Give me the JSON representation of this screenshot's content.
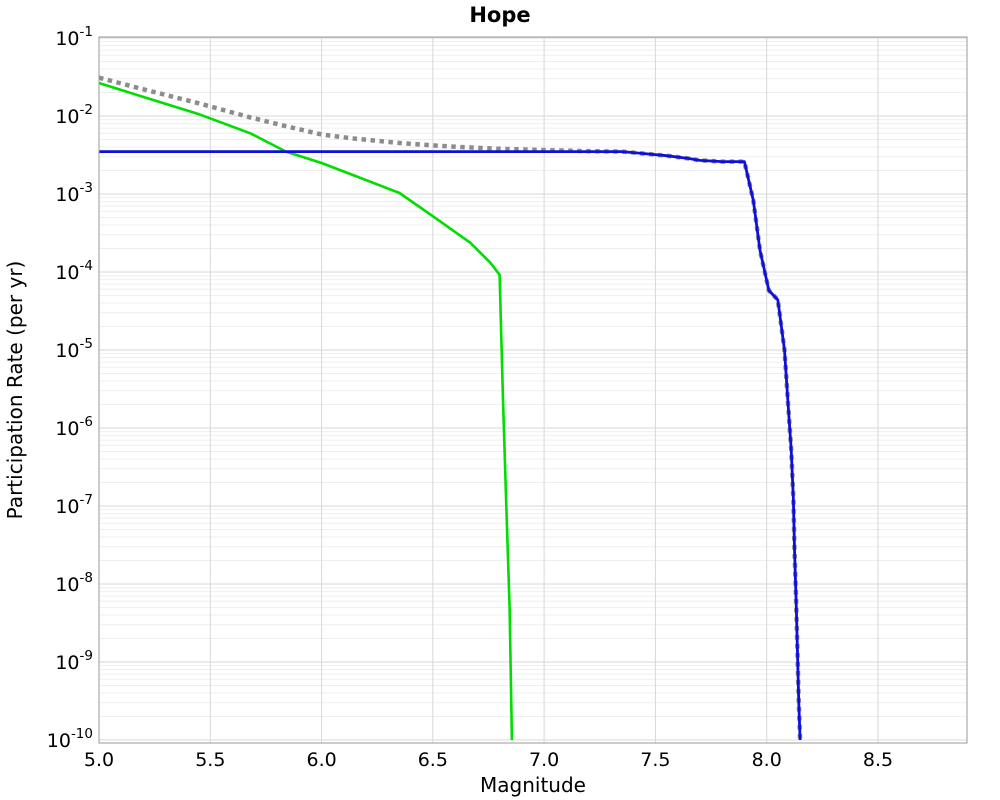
{
  "chart_data": {
    "type": "line",
    "title": "Hope",
    "xlabel": "Magnitude",
    "ylabel": "Participation Rate (per yr)",
    "xlim": [
      5.0,
      8.9
    ],
    "ylim": [
      1e-10,
      0.1
    ],
    "y_scale": "log",
    "grid": {
      "horizontal_major": true,
      "horizontal_minor_log": true,
      "vertical_major": true,
      "legend": "none"
    },
    "x_ticks": [
      5.0,
      5.5,
      6.0,
      6.5,
      7.0,
      7.5,
      8.0,
      8.5
    ],
    "x_tick_labels": [
      "5.0",
      "5.5",
      "6.0",
      "6.5",
      "7.0",
      "7.5",
      "8.0",
      "8.5"
    ],
    "y_tick_exponents": [
      -1,
      -2,
      -3,
      -4,
      -5,
      -6,
      -7,
      -8,
      -9,
      -10
    ],
    "y_tick_base": "10",
    "colors": {
      "gray_dotted": "#8c8c8c",
      "green_solid": "#00dd00",
      "blue_solid": "#0f0fdc",
      "grid_major": "#d7d7d7",
      "grid_minor": "#efefef",
      "plot_border": "#9a9a9a"
    },
    "series": [
      {
        "name": "total-rate-dotted-gray",
        "style": "dotted",
        "color": "#8c8c8c",
        "width": 4.5,
        "points": [
          [
            5.0,
            0.031
          ],
          [
            5.2,
            0.022
          ],
          [
            5.45,
            0.0145
          ],
          [
            5.68,
            0.0096
          ],
          [
            5.84,
            0.0074
          ],
          [
            6.0,
            0.0058
          ],
          [
            6.13,
            0.0052
          ],
          [
            6.35,
            0.0045
          ],
          [
            6.5,
            0.0042
          ],
          [
            6.62,
            0.004
          ],
          [
            6.8,
            0.0038
          ],
          [
            7.0,
            0.00365
          ],
          [
            7.2,
            0.00355
          ],
          [
            7.35,
            0.0035
          ],
          [
            7.45,
            0.0033
          ],
          [
            7.55,
            0.0031
          ],
          [
            7.65,
            0.00285
          ],
          [
            7.7,
            0.0027
          ],
          [
            7.75,
            0.00265
          ],
          [
            7.8,
            0.0026
          ],
          [
            7.9,
            0.0026
          ],
          [
            7.94,
            0.00083
          ],
          [
            7.97,
            0.00019
          ],
          [
            8.01,
            5.8e-05
          ],
          [
            8.05,
            4.4e-05
          ],
          [
            8.08,
            1e-05
          ],
          [
            8.095,
            2.3e-06
          ],
          [
            8.11,
            5.3e-07
          ],
          [
            8.12,
            1.2e-07
          ],
          [
            8.125,
            2.8e-08
          ],
          [
            8.132,
            6.3e-09
          ],
          [
            8.138,
            1.45e-09
          ],
          [
            8.144,
            3.3e-10
          ],
          [
            8.15,
            1e-10
          ]
        ]
      },
      {
        "name": "low-magnitude-branch-green",
        "style": "solid",
        "color": "#00dd00",
        "width": 2.6,
        "points": [
          [
            5.0,
            0.0265
          ],
          [
            5.2,
            0.0175
          ],
          [
            5.45,
            0.0105
          ],
          [
            5.68,
            0.006
          ],
          [
            5.84,
            0.0035
          ],
          [
            6.0,
            0.0025
          ],
          [
            6.13,
            0.0018
          ],
          [
            6.35,
            0.00103
          ],
          [
            6.5,
            0.00052
          ],
          [
            6.67,
            0.000235
          ],
          [
            6.76,
            0.00013
          ],
          [
            6.8,
            9.2e-05
          ],
          [
            6.815,
            2.3e-06
          ],
          [
            6.83,
            1e-07
          ],
          [
            6.845,
            5e-09
          ],
          [
            6.855,
            1e-10
          ]
        ]
      },
      {
        "name": "characteristic-branch-blue",
        "style": "solid",
        "color": "#0f0fdc",
        "width": 2.8,
        "points": [
          [
            5.0,
            0.0035
          ],
          [
            6.0,
            0.0035
          ],
          [
            6.5,
            0.0035
          ],
          [
            7.0,
            0.0035
          ],
          [
            7.35,
            0.0035
          ],
          [
            7.45,
            0.0033
          ],
          [
            7.55,
            0.0031
          ],
          [
            7.65,
            0.00285
          ],
          [
            7.7,
            0.0027
          ],
          [
            7.75,
            0.00265
          ],
          [
            7.8,
            0.0026
          ],
          [
            7.9,
            0.0026
          ],
          [
            7.94,
            0.00083
          ],
          [
            7.97,
            0.00019
          ],
          [
            8.01,
            5.8e-05
          ],
          [
            8.05,
            4.4e-05
          ],
          [
            8.08,
            1e-05
          ],
          [
            8.095,
            2.3e-06
          ],
          [
            8.11,
            5.3e-07
          ],
          [
            8.12,
            1.2e-07
          ],
          [
            8.125,
            2.8e-08
          ],
          [
            8.132,
            6.3e-09
          ],
          [
            8.138,
            1.45e-09
          ],
          [
            8.144,
            3.3e-10
          ],
          [
            8.15,
            1e-10
          ]
        ]
      }
    ]
  }
}
